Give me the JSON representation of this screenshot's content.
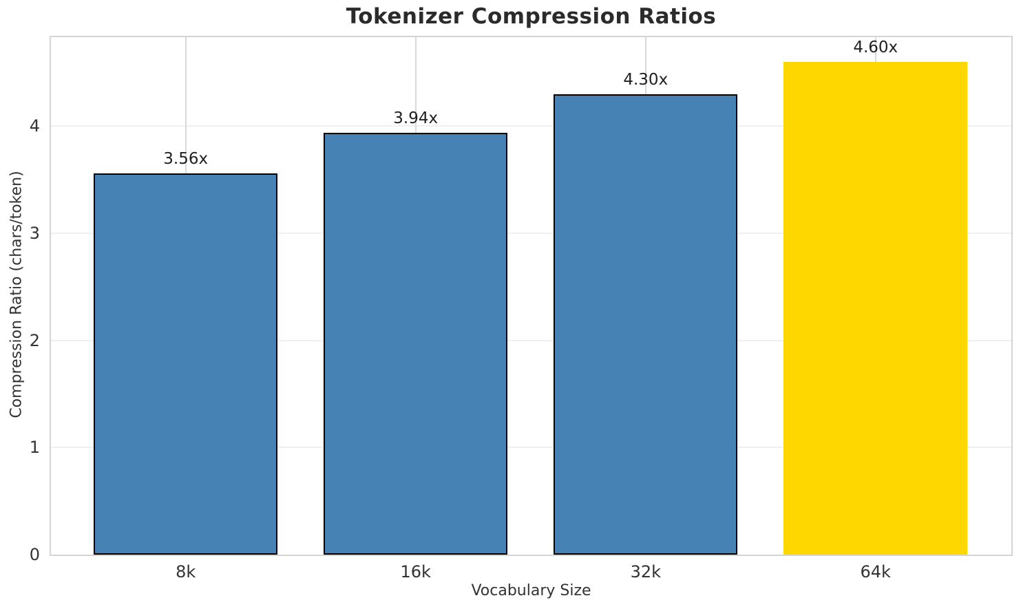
{
  "chart_data": {
    "type": "bar",
    "title": "Tokenizer Compression Ratios",
    "xlabel": "Vocabulary Size",
    "ylabel": "Compression Ratio (chars/token)",
    "categories": [
      "8k",
      "16k",
      "32k",
      "64k"
    ],
    "values": [
      3.56,
      3.94,
      4.3,
      4.6
    ],
    "bar_labels": [
      "3.56x",
      "3.94x",
      "4.30x",
      "4.60x"
    ],
    "ylim": [
      0,
      4.83
    ],
    "yticks": [
      0,
      1,
      2,
      3,
      4
    ],
    "grid": true,
    "legend_position": "none",
    "bar_colors": [
      "#4682B4",
      "#4682B4",
      "#4682B4",
      "#FFD700"
    ],
    "bar_edge_colors": [
      "#000000",
      "#000000",
      "#000000",
      "none"
    ],
    "highlight_index": 3,
    "colors": {
      "bar_default": "#4682B4",
      "bar_highlight": "#FFD700",
      "bar_edge": "#000000",
      "grid_horizontal": "#f0f0f2",
      "grid_vertical": "#d9d9d9",
      "spine": "#d5d5d5",
      "text": "#333333",
      "title_text": "#2b2b2b"
    }
  }
}
